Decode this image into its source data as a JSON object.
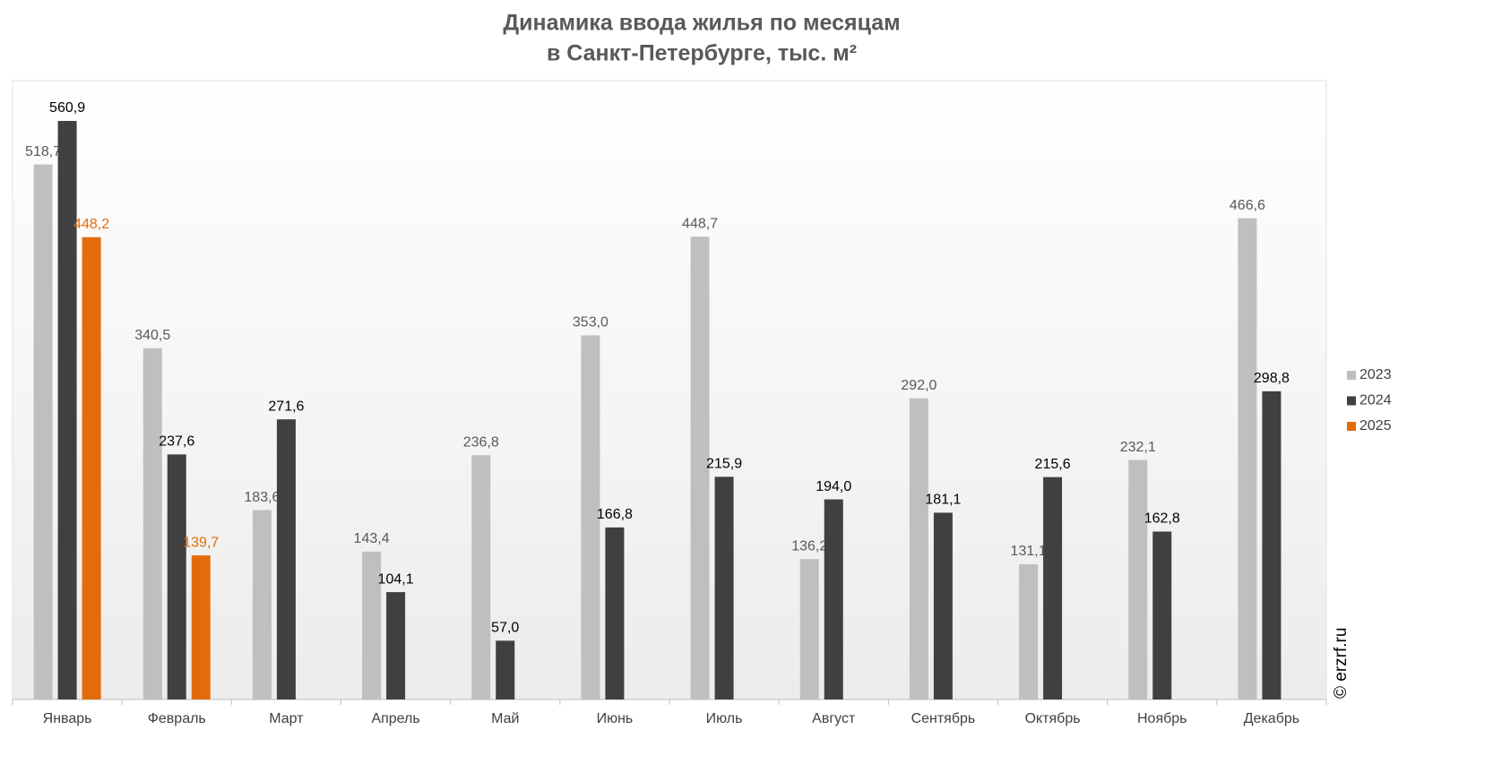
{
  "chart_data": {
    "type": "bar",
    "title": [
      "Динамика ввода жилья по месяцам",
      "в Санкт-Петербурге, тыс. м²"
    ],
    "categories": [
      "Январь",
      "Февраль",
      "Март",
      "Апрель",
      "Май",
      "Июнь",
      "Июль",
      "Август",
      "Сентябрь",
      "Октябрь",
      "Ноябрь",
      "Декабрь"
    ],
    "series": [
      {
        "name": "2023",
        "color": "#bfbfbf",
        "label_color": "#595959",
        "values": [
          518.7,
          340.5,
          183.6,
          143.4,
          236.8,
          353.0,
          448.7,
          136.2,
          292.0,
          131.1,
          232.1,
          466.6
        ],
        "value_labels": [
          "518,7",
          "340,5",
          "183,6",
          "143,4",
          "236,8",
          "353,0",
          "448,7",
          "136,2",
          "292,0",
          "131,1",
          "232,1",
          "466,6"
        ]
      },
      {
        "name": "2024",
        "color": "#404040",
        "label_color": "#000000",
        "values": [
          560.9,
          237.6,
          271.6,
          104.1,
          57.0,
          166.8,
          215.9,
          194.0,
          181.1,
          215.6,
          162.8,
          298.8
        ],
        "value_labels": [
          "560,9",
          "237,6",
          "271,6",
          "104,1",
          "57,0",
          "166,8",
          "215,9",
          "194,0",
          "181,1",
          "215,6",
          "162,8",
          "298,8"
        ]
      },
      {
        "name": "2025",
        "color": "#e36c0a",
        "label_color": "#e36c0a",
        "values": [
          448.2,
          139.7,
          null,
          null,
          null,
          null,
          null,
          null,
          null,
          null,
          null,
          null
        ],
        "value_labels": [
          "448,2",
          "139,7",
          null,
          null,
          null,
          null,
          null,
          null,
          null,
          null,
          null,
          null
        ]
      }
    ],
    "ylim": [
      0,
      600
    ],
    "source": "© erzrf.ru"
  }
}
